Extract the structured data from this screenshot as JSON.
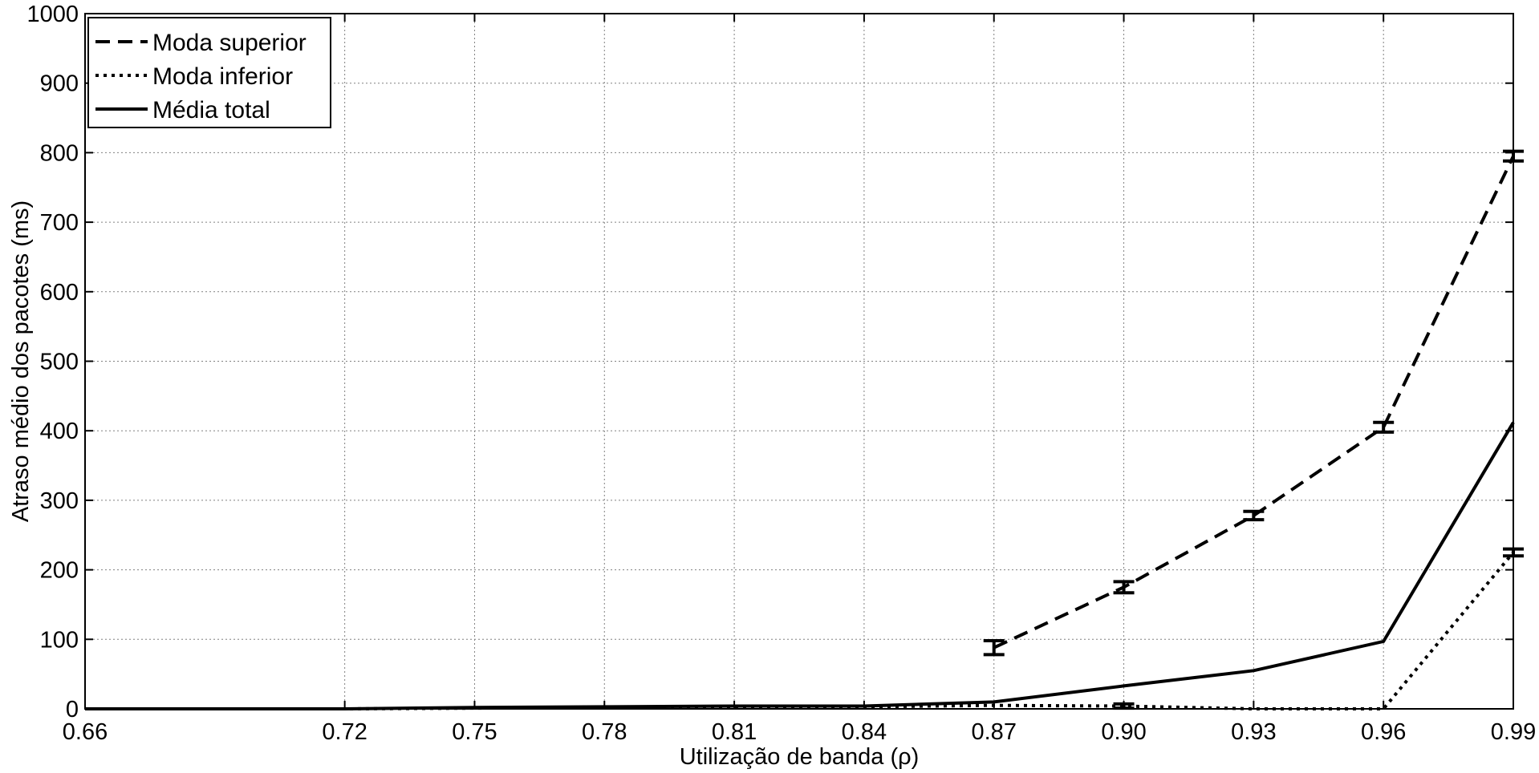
{
  "chart_data": {
    "type": "line",
    "xlabel": "Utilização de banda (ρ)",
    "ylabel": "Atraso médio dos pacotes (ms)",
    "xlim": [
      0.66,
      0.99
    ],
    "ylim": [
      0,
      1000
    ],
    "x_ticks": [
      0.66,
      0.72,
      0.75,
      0.78,
      0.81,
      0.84,
      0.87,
      0.9,
      0.93,
      0.96,
      0.99
    ],
    "x_tick_labels": [
      "0.66",
      "0.72",
      "0.75",
      "0.78",
      "0.81",
      "0.84",
      "0.87",
      "0.90",
      "0.93",
      "0.96",
      "0.99"
    ],
    "y_ticks": [
      0,
      100,
      200,
      300,
      400,
      500,
      600,
      700,
      800,
      900,
      1000
    ],
    "y_tick_labels": [
      "0",
      "100",
      "200",
      "300",
      "400",
      "500",
      "600",
      "700",
      "800",
      "900",
      "1000"
    ],
    "grid": true,
    "legend_position": "top-left",
    "series": [
      {
        "name": "Moda superior",
        "style": "dashed",
        "x": [
          0.87,
          0.9,
          0.93,
          0.96,
          0.99
        ],
        "values": [
          88,
          175,
          278,
          405,
          795
        ],
        "error": [
          10,
          8,
          6,
          7,
          7
        ]
      },
      {
        "name": "Moda inferior",
        "style": "dotted",
        "x": [
          0.66,
          0.72,
          0.75,
          0.78,
          0.81,
          0.84,
          0.87,
          0.9,
          0.93,
          0.96,
          0.99
        ],
        "values": [
          0,
          0,
          1,
          2,
          3,
          3,
          5,
          4,
          0,
          0,
          225
        ],
        "error": [
          0,
          0,
          0,
          0,
          0,
          0,
          0,
          3,
          0,
          0,
          5
        ]
      },
      {
        "name": "Média total",
        "style": "solid",
        "x": [
          0.66,
          0.72,
          0.75,
          0.78,
          0.81,
          0.84,
          0.87,
          0.9,
          0.93,
          0.96,
          0.99
        ],
        "values": [
          0,
          0,
          2,
          3,
          4,
          4,
          10,
          33,
          55,
          97,
          412
        ],
        "error": [
          0,
          0,
          0,
          0,
          0,
          0,
          0,
          0,
          0,
          0,
          0
        ]
      }
    ],
    "line_color": "#000000",
    "grid_color": "#808080"
  }
}
